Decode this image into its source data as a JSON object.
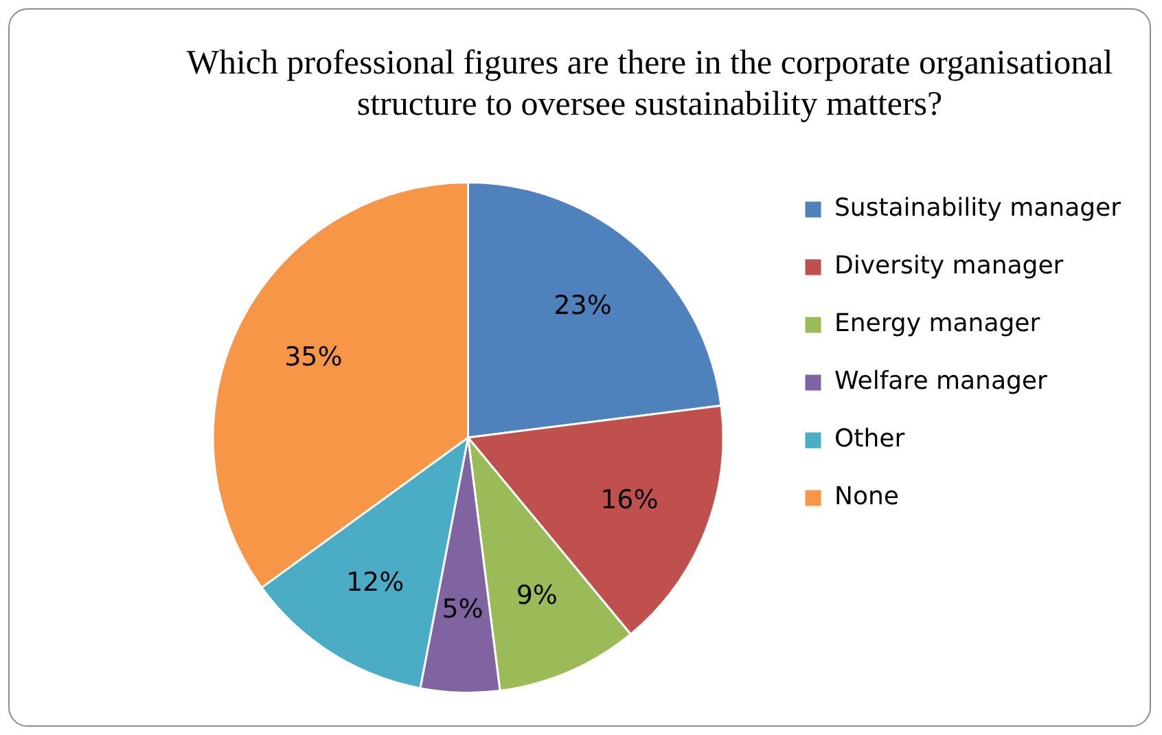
{
  "chart_data": {
    "type": "pie",
    "title": "Which professional figures are there in the corporate organisational structure to oversee sustainability matters?",
    "categories": [
      "Sustainability manager",
      "Diversity manager",
      "Energy manager",
      "Welfare manager",
      "Other",
      "None"
    ],
    "values": [
      23,
      16,
      9,
      5,
      12,
      35
    ],
    "colors": [
      "#4f81bd",
      "#c0504d",
      "#9bbb59",
      "#8064a2",
      "#4bacc6",
      "#f79646"
    ],
    "value_labels": [
      "23%",
      "16%",
      "9%",
      "5%",
      "12%",
      "35%"
    ],
    "legend": "right"
  }
}
